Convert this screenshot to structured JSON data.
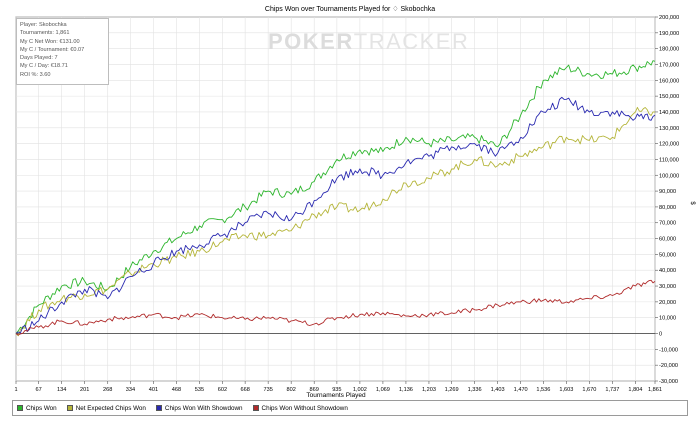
{
  "colors": {
    "chips_won": "#2db52d",
    "net_expected": "#b5b53a",
    "with_showdown": "#2a2ab0",
    "without_showdown": "#b02a2a"
  },
  "info_box": {
    "lines": [
      "Player: Skobochka",
      "Tournaments: 1,861",
      "My C Net Won: €131.00",
      "My C / Tournament: €0.07",
      "Days Played: 7",
      "My C / Day: €18.71",
      "ROI %: 3.60"
    ]
  },
  "watermark": {
    "part1": "POKER",
    "part2": "TRACKER"
  },
  "legend": [
    {
      "label": "Chips Won",
      "color_key": "chips_won"
    },
    {
      "label": "Net Expected Chips Won",
      "color_key": "net_expected"
    },
    {
      "label": "Chips Won With Showdown",
      "color_key": "with_showdown"
    },
    {
      "label": "Chips Won Without Showdown",
      "color_key": "without_showdown"
    }
  ],
  "chart_data": {
    "type": "line",
    "title": "Chips Won over Tournaments Played for ♢ Skobochka",
    "xlabel": "Tournaments Played",
    "ylabel": "$",
    "xlim": [
      1,
      1861
    ],
    "ylim": [
      -30000,
      200000
    ],
    "x_ticks": [
      "1",
      "67",
      "134",
      "201",
      "268",
      "334",
      "401",
      "468",
      "535",
      "602",
      "668",
      "735",
      "802",
      "869",
      "935",
      "1,002",
      "1,069",
      "1,136",
      "1,203",
      "1,269",
      "1,336",
      "1,403",
      "1,470",
      "1,536",
      "1,603",
      "1,670",
      "1,737",
      "1,804",
      "1,861"
    ],
    "y_ticks": [
      "-30,000",
      "-20,000",
      "-10,000",
      "0",
      "10,000",
      "20,000",
      "30,000",
      "40,000",
      "50,000",
      "60,000",
      "70,000",
      "80,000",
      "90,000",
      "100,000",
      "110,000",
      "120,000",
      "130,000",
      "140,000",
      "150,000",
      "160,000",
      "170,000",
      "180,000",
      "190,000",
      "200,000"
    ],
    "grid": true,
    "legend_position": "bottom",
    "series": [
      {
        "name": "Chips Won",
        "color_key": "chips_won",
        "points": [
          [
            1,
            0
          ],
          [
            67,
            18000
          ],
          [
            134,
            30000
          ],
          [
            201,
            33000
          ],
          [
            268,
            28000
          ],
          [
            334,
            42000
          ],
          [
            401,
            52000
          ],
          [
            468,
            60000
          ],
          [
            535,
            68000
          ],
          [
            602,
            72000
          ],
          [
            668,
            80000
          ],
          [
            735,
            90000
          ],
          [
            802,
            88000
          ],
          [
            869,
            96000
          ],
          [
            935,
            110000
          ],
          [
            1002,
            116000
          ],
          [
            1069,
            115000
          ],
          [
            1136,
            124000
          ],
          [
            1203,
            120000
          ],
          [
            1269,
            122000
          ],
          [
            1336,
            124000
          ],
          [
            1403,
            118000
          ],
          [
            1470,
            138000
          ],
          [
            1536,
            160000
          ],
          [
            1603,
            168000
          ],
          [
            1670,
            164000
          ],
          [
            1737,
            164000
          ],
          [
            1804,
            168000
          ],
          [
            1861,
            172000
          ]
        ]
      },
      {
        "name": "Net Expected Chips Won",
        "color_key": "net_expected",
        "points": [
          [
            1,
            0
          ],
          [
            67,
            15000
          ],
          [
            134,
            22000
          ],
          [
            201,
            25000
          ],
          [
            268,
            28000
          ],
          [
            334,
            38000
          ],
          [
            401,
            44000
          ],
          [
            468,
            48000
          ],
          [
            535,
            52000
          ],
          [
            602,
            58000
          ],
          [
            668,
            62000
          ],
          [
            735,
            62000
          ],
          [
            802,
            65000
          ],
          [
            869,
            75000
          ],
          [
            935,
            80000
          ],
          [
            1002,
            78000
          ],
          [
            1069,
            85000
          ],
          [
            1136,
            95000
          ],
          [
            1203,
            98000
          ],
          [
            1269,
            104000
          ],
          [
            1336,
            110000
          ],
          [
            1403,
            106000
          ],
          [
            1470,
            112000
          ],
          [
            1536,
            118000
          ],
          [
            1603,
            124000
          ],
          [
            1670,
            122000
          ],
          [
            1737,
            124000
          ],
          [
            1804,
            140000
          ],
          [
            1861,
            140000
          ]
        ]
      },
      {
        "name": "Chips Won With Showdown",
        "color_key": "with_showdown",
        "points": [
          [
            1,
            0
          ],
          [
            67,
            8000
          ],
          [
            134,
            20000
          ],
          [
            201,
            28000
          ],
          [
            268,
            22000
          ],
          [
            334,
            36000
          ],
          [
            401,
            44000
          ],
          [
            468,
            52000
          ],
          [
            535,
            56000
          ],
          [
            602,
            62000
          ],
          [
            668,
            70000
          ],
          [
            735,
            76000
          ],
          [
            802,
            72000
          ],
          [
            869,
            84000
          ],
          [
            935,
            98000
          ],
          [
            1002,
            104000
          ],
          [
            1069,
            100000
          ],
          [
            1136,
            108000
          ],
          [
            1203,
            112000
          ],
          [
            1269,
            118000
          ],
          [
            1336,
            120000
          ],
          [
            1403,
            114000
          ],
          [
            1470,
            124000
          ],
          [
            1536,
            140000
          ],
          [
            1603,
            148000
          ],
          [
            1670,
            140000
          ],
          [
            1737,
            140000
          ],
          [
            1804,
            136000
          ],
          [
            1861,
            138000
          ]
        ]
      },
      {
        "name": "Chips Won Without Showdown",
        "color_key": "without_showdown",
        "points": [
          [
            1,
            0
          ],
          [
            67,
            4000
          ],
          [
            134,
            8000
          ],
          [
            201,
            6000
          ],
          [
            268,
            9000
          ],
          [
            334,
            10000
          ],
          [
            401,
            12000
          ],
          [
            468,
            10000
          ],
          [
            535,
            12000
          ],
          [
            602,
            10000
          ],
          [
            668,
            9000
          ],
          [
            735,
            10000
          ],
          [
            802,
            8000
          ],
          [
            869,
            6000
          ],
          [
            935,
            10000
          ],
          [
            1002,
            12000
          ],
          [
            1069,
            13000
          ],
          [
            1136,
            11000
          ],
          [
            1203,
            12000
          ],
          [
            1269,
            13000
          ],
          [
            1336,
            15000
          ],
          [
            1403,
            18000
          ],
          [
            1470,
            20000
          ],
          [
            1536,
            21000
          ],
          [
            1603,
            20000
          ],
          [
            1670,
            22000
          ],
          [
            1737,
            24000
          ],
          [
            1804,
            30000
          ],
          [
            1861,
            33000
          ]
        ]
      }
    ]
  }
}
